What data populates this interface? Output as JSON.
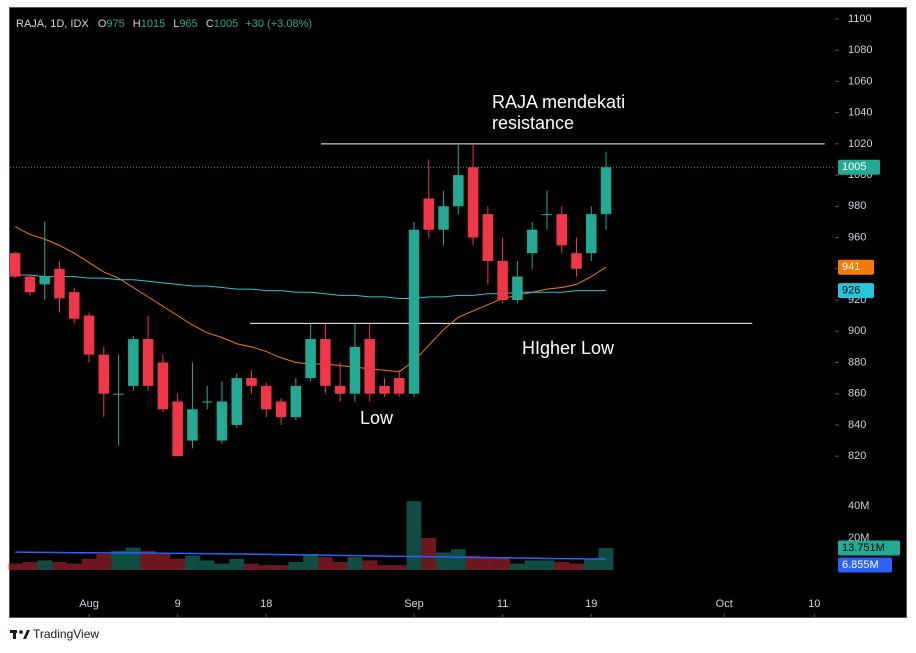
{
  "chart_data": {
    "type": "candlestick",
    "header": {
      "symbol": "RAJA, 1D, IDX",
      "open_prefix": "O",
      "high_prefix": "H",
      "low_prefix": "L",
      "close_prefix": "C",
      "change": "+30 (+3.08%)"
    },
    "open": [
      950,
      935,
      930,
      940,
      925,
      910,
      885,
      860,
      865,
      895,
      880,
      855,
      830,
      855,
      830,
      840,
      870,
      865,
      855,
      845,
      870,
      895,
      865,
      860,
      895,
      865,
      870,
      860,
      985,
      965,
      980,
      1005,
      975,
      945,
      920,
      950,
      975,
      975,
      950,
      950,
      975
    ],
    "high": [
      951,
      936,
      970,
      945,
      928,
      912,
      890,
      885,
      897,
      910,
      885,
      860,
      880,
      865,
      868,
      873,
      875,
      867,
      857,
      870,
      905,
      905,
      880,
      905,
      905,
      870,
      875,
      970,
      1010,
      990,
      1020,
      1020,
      980,
      960,
      945,
      970,
      990,
      980,
      960,
      980,
      1015
    ],
    "low": [
      934,
      923,
      920,
      912,
      905,
      880,
      845,
      827,
      862,
      862,
      848,
      820,
      825,
      850,
      828,
      838,
      860,
      845,
      840,
      843,
      868,
      860,
      855,
      855,
      855,
      858,
      858,
      858,
      960,
      955,
      975,
      955,
      930,
      918,
      918,
      940,
      965,
      950,
      935,
      945,
      965
    ],
    "close": [
      935,
      925,
      935,
      921,
      908,
      885,
      860,
      860,
      895,
      865,
      850,
      820,
      850,
      855,
      855,
      870,
      865,
      850,
      845,
      865,
      895,
      865,
      860,
      890,
      860,
      860,
      860,
      965,
      965,
      980,
      1000,
      960,
      945,
      920,
      935,
      965,
      975,
      955,
      940,
      975,
      1005
    ],
    "up_color": "#22ab94",
    "down_color": "#f23645",
    "series": [
      {
        "name": "MA fast",
        "color": "#f57c00",
        "values": [
          967,
          962,
          959,
          955,
          950,
          944,
          938,
          934,
          928,
          922,
          916,
          910,
          904,
          899,
          896,
          892,
          890,
          887,
          883,
          880,
          879,
          879,
          878,
          877,
          876,
          875,
          874,
          881,
          891,
          901,
          909,
          913,
          917,
          921,
          923,
          925,
          927,
          928,
          930,
          935,
          941
        ]
      },
      {
        "name": "MA slow",
        "color": "#26c6da",
        "values": [
          936,
          936,
          935,
          935,
          935,
          934,
          934,
          933,
          933,
          932,
          931,
          930,
          929,
          929,
          928,
          927,
          927,
          926,
          926,
          925,
          925,
          924,
          923,
          923,
          922,
          922,
          921,
          921,
          922,
          922,
          923,
          923,
          924,
          924,
          925,
          925,
          925,
          925,
          926,
          926,
          926
        ]
      }
    ],
    "volume": {
      "values": [
        4,
        5,
        6,
        5,
        4,
        7,
        10,
        12,
        14,
        12,
        10,
        7,
        9,
        6,
        4,
        7,
        4,
        3,
        3,
        5,
        10,
        8,
        5,
        8,
        6,
        3,
        3,
        43,
        20,
        11,
        13,
        9,
        8,
        8,
        4,
        6,
        6,
        5,
        4,
        7,
        13.751
      ],
      "last_label": "13.751M",
      "ma_color": "#2962ff",
      "ma_values": [
        11.2,
        11.1,
        11.0,
        10.9,
        10.8,
        10.8,
        10.7,
        10.7,
        10.7,
        10.6,
        10.5,
        10.4,
        10.3,
        10.2,
        10.1,
        10.0,
        9.9,
        9.8,
        9.6,
        9.5,
        9.4,
        9.3,
        9.1,
        9.0,
        8.8,
        8.7,
        8.5,
        8.4,
        8.3,
        8.2,
        8.0,
        7.9,
        7.8,
        7.6,
        7.5,
        7.4,
        7.2,
        7.1,
        7.0,
        6.9,
        6.855
      ],
      "ma_last_label": "6.855M",
      "vlim": [
        0,
        50
      ],
      "vticks": [
        {
          "value": 20,
          "label": "20M"
        },
        {
          "value": 40,
          "label": "40M"
        }
      ]
    },
    "xlim": [
      -0.35,
      55.5
    ],
    "xticks": [
      {
        "value": 5,
        "label": "Aug"
      },
      {
        "value": 11,
        "label": "9"
      },
      {
        "value": 17,
        "label": "18"
      },
      {
        "value": 27,
        "label": "Sep"
      },
      {
        "value": 33,
        "label": "11"
      },
      {
        "value": 39,
        "label": "19"
      },
      {
        "value": 48,
        "label": "Oct"
      },
      {
        "value": 54.1,
        "label": "10"
      }
    ],
    "ylim": [
      717,
      1107
    ],
    "yticks": [
      820,
      840,
      860,
      880,
      900,
      920,
      940,
      960,
      980,
      1000,
      1020,
      1040,
      1060,
      1080,
      1100
    ],
    "hlines": [
      {
        "value": 1020,
        "x_range": [
          20.7,
          54.8
        ]
      },
      {
        "value": 905,
        "x_range": [
          15.9,
          49.9
        ]
      }
    ],
    "annotations": {
      "resistance_line1": "RAJA mendekati",
      "resistance_line2": "resistance",
      "low": "Low",
      "higher_low": "HIgher Low"
    }
  },
  "footer": {
    "brand": "TradingView"
  }
}
